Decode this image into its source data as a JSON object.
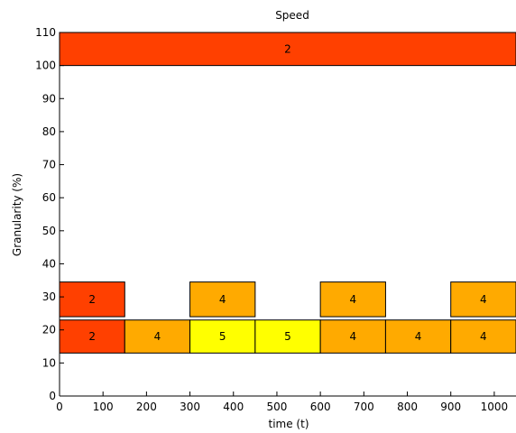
{
  "chart_data": {
    "type": "bar",
    "title": "Speed",
    "xlabel": "time (t)",
    "ylabel": "Granularity (%)",
    "xlim": [
      0,
      1050
    ],
    "ylim": [
      0,
      110
    ],
    "x_ticks": [
      0,
      100,
      200,
      300,
      400,
      500,
      600,
      700,
      800,
      900,
      1000
    ],
    "y_ticks": [
      0,
      10,
      20,
      30,
      40,
      50,
      60,
      70,
      80,
      90,
      100,
      110
    ],
    "grid": false,
    "color_scale": {
      "2": "#ff4000",
      "4": "#ffaa00",
      "5": "#ffff00"
    },
    "blocks": [
      {
        "x0": 0,
        "x1": 1050,
        "y0": 100,
        "y1": 110,
        "value": "2"
      },
      {
        "x0": 0,
        "x1": 150,
        "y0": 24,
        "y1": 34.5,
        "value": "2"
      },
      {
        "x0": 300,
        "x1": 450,
        "y0": 24,
        "y1": 34.5,
        "value": "4"
      },
      {
        "x0": 600,
        "x1": 750,
        "y0": 24,
        "y1": 34.5,
        "value": "4"
      },
      {
        "x0": 900,
        "x1": 1050,
        "y0": 24,
        "y1": 34.5,
        "value": "4"
      },
      {
        "x0": 0,
        "x1": 150,
        "y0": 13,
        "y1": 23,
        "value": "2"
      },
      {
        "x0": 150,
        "x1": 300,
        "y0": 13,
        "y1": 23,
        "value": "4"
      },
      {
        "x0": 300,
        "x1": 450,
        "y0": 13,
        "y1": 23,
        "value": "5"
      },
      {
        "x0": 450,
        "x1": 600,
        "y0": 13,
        "y1": 23,
        "value": "5"
      },
      {
        "x0": 600,
        "x1": 750,
        "y0": 13,
        "y1": 23,
        "value": "4"
      },
      {
        "x0": 750,
        "x1": 900,
        "y0": 13,
        "y1": 23,
        "value": "4"
      },
      {
        "x0": 900,
        "x1": 1050,
        "y0": 13,
        "y1": 23,
        "value": "4"
      }
    ]
  }
}
